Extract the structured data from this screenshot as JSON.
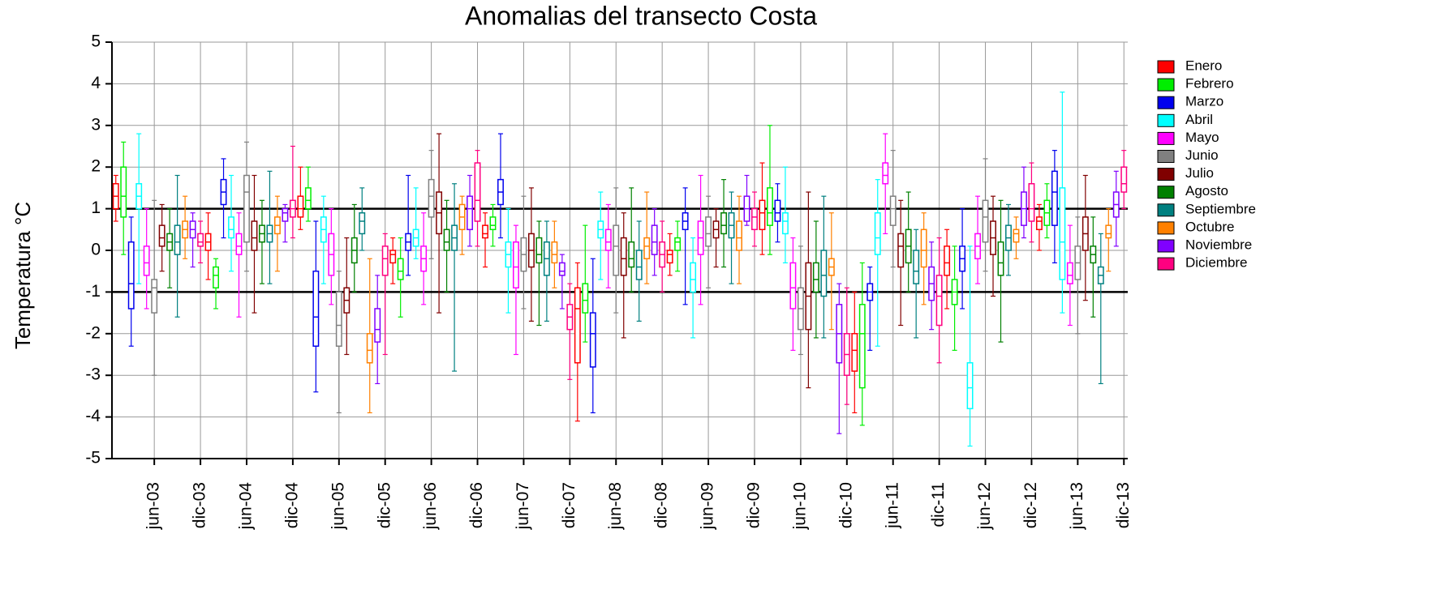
{
  "chart_data": {
    "type": "box",
    "title": "Anomalias del transecto Costa",
    "y_label": "Temperatura °C",
    "categories": [
      null,
      null,
      null,
      null,
      null,
      "jun-03",
      null,
      null,
      null,
      null,
      null,
      "dic-03",
      null,
      null,
      null,
      null,
      null,
      "jun-04",
      null,
      null,
      null,
      null,
      null,
      "dic-04",
      null,
      null,
      null,
      null,
      null,
      "jun-05",
      null,
      null,
      null,
      null,
      null,
      "dic-05",
      null,
      null,
      null,
      null,
      null,
      "jun-06",
      null,
      null,
      null,
      null,
      null,
      "dic-06",
      null,
      null,
      null,
      null,
      null,
      "jun-07",
      null,
      null,
      null,
      null,
      null,
      "dic-07",
      null,
      null,
      null,
      null,
      null,
      "jun-08",
      null,
      null,
      null,
      null,
      null,
      "dic-08",
      null,
      null,
      null,
      null,
      null,
      "jun-09",
      null,
      null,
      null,
      null,
      null,
      "dic-09",
      null,
      null,
      null,
      null,
      null,
      "jun-10",
      null,
      null,
      null,
      null,
      null,
      "dic-10",
      null,
      null,
      null,
      null,
      null,
      "jun-11",
      null,
      null,
      null,
      null,
      null,
      "dic-11",
      null,
      null,
      null,
      null,
      null,
      "jun-12",
      null,
      null,
      null,
      null,
      null,
      "dic-12",
      null,
      null,
      null,
      null,
      null,
      "jun-13",
      null,
      null,
      null,
      null,
      null,
      "dic-13"
    ],
    "legend": [
      {
        "name": "Enero",
        "color": "#ff0000"
      },
      {
        "name": "Febrero",
        "color": "#00ee00"
      },
      {
        "name": "Marzo",
        "color": "#0000ee"
      },
      {
        "name": "Abril",
        "color": "#00ffff"
      },
      {
        "name": "Mayo",
        "color": "#ff00ff"
      },
      {
        "name": "Junio",
        "color": "#808080"
      },
      {
        "name": "Julio",
        "color": "#800000"
      },
      {
        "name": "Agosto",
        "color": "#008000"
      },
      {
        "name": "Septiembre",
        "color": "#008080"
      },
      {
        "name": "Octubre",
        "color": "#ff8000"
      },
      {
        "name": "Noviembre",
        "color": "#8000ff"
      },
      {
        "name": "Diciembre",
        "color": "#ff0080"
      }
    ],
    "boxes": [
      [
        0.7,
        1.0,
        1.3,
        1.6,
        1.8
      ],
      [
        -0.1,
        0.8,
        1.3,
        2.0,
        2.6
      ],
      [
        -2.3,
        -1.4,
        -0.8,
        0.2,
        0.8
      ],
      [
        -0.8,
        1.0,
        1.3,
        1.6,
        2.8
      ],
      [
        -1.4,
        -0.6,
        -0.3,
        0.1,
        1.0
      ],
      [
        -3.0,
        -1.5,
        -0.9,
        -0.7,
        1.2
      ],
      [
        -0.5,
        0.1,
        0.3,
        0.6,
        1.1
      ],
      [
        -0.9,
        0.0,
        0.2,
        0.4,
        1.0
      ],
      [
        -1.6,
        -0.1,
        0.2,
        0.6,
        1.8
      ],
      [
        -0.2,
        0.3,
        0.5,
        0.7,
        1.3
      ],
      [
        -0.4,
        0.3,
        0.5,
        0.7,
        0.9
      ],
      [
        -0.3,
        0.1,
        0.2,
        0.4,
        0.7
      ],
      [
        -0.7,
        0.0,
        0.2,
        0.4,
        0.9
      ],
      [
        -1.4,
        -0.9,
        -0.6,
        -0.4,
        -0.2
      ],
      [
        0.3,
        1.1,
        1.4,
        1.7,
        2.2
      ],
      [
        -0.5,
        0.3,
        0.5,
        0.8,
        1.8
      ],
      [
        -1.6,
        -0.1,
        0.1,
        0.4,
        0.9
      ],
      [
        -0.5,
        0.2,
        1.4,
        1.8,
        2.6
      ],
      [
        -1.5,
        0.0,
        0.3,
        0.7,
        1.8
      ],
      [
        -0.8,
        0.2,
        0.4,
        0.6,
        1.2
      ],
      [
        -0.8,
        0.2,
        0.4,
        0.6,
        1.9
      ],
      [
        -0.5,
        0.4,
        0.6,
        0.8,
        1.3
      ],
      [
        0.2,
        0.7,
        0.9,
        1.0,
        1.1
      ],
      [
        0.3,
        0.8,
        1.0,
        1.2,
        2.5
      ],
      [
        0.5,
        0.8,
        1.0,
        1.3,
        2.0
      ],
      [
        0.7,
        1.0,
        1.2,
        1.5,
        2.0
      ],
      [
        -3.4,
        -2.3,
        -1.6,
        -0.5,
        0.7
      ],
      [
        -0.8,
        0.2,
        0.5,
        0.8,
        1.3
      ],
      [
        -1.3,
        -0.6,
        -0.1,
        0.4,
        1.0
      ],
      [
        -3.9,
        -2.3,
        -1.8,
        -1.0,
        -0.5
      ],
      [
        -2.5,
        -1.5,
        -1.2,
        -0.9,
        0.3
      ],
      [
        -1.0,
        -0.3,
        0.0,
        0.3,
        1.1
      ],
      [
        0.0,
        0.4,
        0.7,
        0.9,
        1.5
      ],
      [
        -3.9,
        -2.7,
        -2.4,
        -2.0,
        -0.2
      ],
      [
        -3.2,
        -2.2,
        -1.9,
        -1.4,
        -0.6
      ],
      [
        -2.5,
        -0.6,
        -0.2,
        0.1,
        0.4
      ],
      [
        -0.8,
        -0.3,
        -0.1,
        0.0,
        0.3
      ],
      [
        -1.6,
        -0.7,
        -0.5,
        -0.2,
        0.3
      ],
      [
        -0.6,
        0.0,
        0.2,
        0.4,
        1.8
      ],
      [
        -0.2,
        0.1,
        0.3,
        0.5,
        1.5
      ],
      [
        -1.3,
        -0.5,
        -0.2,
        0.1,
        0.9
      ],
      [
        -0.2,
        0.8,
        1.3,
        1.7,
        2.4
      ],
      [
        -1.5,
        0.4,
        0.9,
        1.4,
        2.8
      ],
      [
        -1.0,
        0.0,
        0.2,
        0.5,
        1.2
      ],
      [
        -2.9,
        0.0,
        0.3,
        0.6,
        1.6
      ],
      [
        -0.1,
        0.5,
        0.8,
        1.1,
        1.3
      ],
      [
        0.1,
        0.5,
        1.0,
        1.3,
        1.8
      ],
      [
        0.1,
        0.7,
        1.2,
        2.1,
        2.4
      ],
      [
        -0.4,
        0.3,
        0.4,
        0.6,
        0.9
      ],
      [
        0.1,
        0.5,
        0.6,
        0.8,
        1.1
      ],
      [
        0.3,
        1.1,
        1.4,
        1.7,
        2.8
      ],
      [
        -1.5,
        -0.4,
        -0.1,
        0.2,
        1.0
      ],
      [
        -2.5,
        -0.9,
        -0.4,
        0.2,
        0.6
      ],
      [
        -1.4,
        -0.5,
        -0.1,
        0.3,
        1.3
      ],
      [
        -1.7,
        -0.4,
        0.0,
        0.4,
        1.5
      ],
      [
        -1.8,
        -0.3,
        -0.1,
        0.3,
        0.7
      ],
      [
        -1.7,
        -0.6,
        -0.2,
        0.2,
        0.7
      ],
      [
        -0.9,
        -0.3,
        -0.1,
        0.2,
        0.7
      ],
      [
        -1.4,
        -0.6,
        -0.5,
        -0.3,
        -0.1
      ],
      [
        -3.1,
        -1.9,
        -1.6,
        -1.3,
        -0.8
      ],
      [
        -4.1,
        -2.7,
        -1.4,
        -0.9,
        -0.3
      ],
      [
        -2.2,
        -1.5,
        -1.2,
        -0.8,
        0.6
      ],
      [
        -3.9,
        -2.8,
        -2.0,
        -1.5,
        -0.2
      ],
      [
        -0.7,
        0.3,
        0.5,
        0.7,
        1.4
      ],
      [
        -0.9,
        0.0,
        0.2,
        0.5,
        1.1
      ],
      [
        -1.5,
        -0.6,
        0.1,
        0.6,
        1.5
      ],
      [
        -2.1,
        -0.6,
        -0.2,
        0.3,
        0.9
      ],
      [
        -1.0,
        -0.4,
        -0.2,
        0.2,
        1.5
      ],
      [
        -1.7,
        -0.7,
        -0.4,
        0.0,
        0.7
      ],
      [
        -0.8,
        -0.2,
        0.1,
        0.3,
        1.4
      ],
      [
        -0.6,
        -0.1,
        0.2,
        0.6,
        1.0
      ],
      [
        -1.0,
        -0.4,
        -0.1,
        0.2,
        0.7
      ],
      [
        -0.6,
        -0.3,
        -0.1,
        0.0,
        0.4
      ],
      [
        -0.5,
        0.0,
        0.2,
        0.3,
        0.7
      ],
      [
        -1.3,
        0.5,
        0.7,
        0.9,
        1.5
      ],
      [
        -2.1,
        -1.0,
        -0.7,
        -0.3,
        0.3
      ],
      [
        -1.3,
        -0.1,
        0.3,
        0.7,
        1.8
      ],
      [
        -0.9,
        0.1,
        0.4,
        0.8,
        1.3
      ],
      [
        -0.4,
        0.3,
        0.5,
        0.7,
        1.0
      ],
      [
        -0.4,
        0.4,
        0.6,
        0.9,
        1.7
      ],
      [
        -0.8,
        0.3,
        0.6,
        0.9,
        1.4
      ],
      [
        -0.8,
        0.0,
        0.3,
        0.7,
        1.3
      ],
      [
        0.6,
        0.7,
        1.0,
        1.3,
        1.8
      ],
      [
        0.1,
        0.5,
        0.8,
        1.0,
        1.4
      ],
      [
        -0.1,
        0.5,
        0.9,
        1.2,
        2.1
      ],
      [
        -0.1,
        0.6,
        0.9,
        1.5,
        3.0
      ],
      [
        0.2,
        0.7,
        0.9,
        1.2,
        1.6
      ],
      [
        -0.3,
        0.4,
        0.7,
        0.9,
        2.0
      ],
      [
        -2.4,
        -1.4,
        -0.9,
        -0.3,
        0.3
      ],
      [
        -2.5,
        -1.9,
        -1.4,
        -0.9,
        0.1
      ],
      [
        -3.3,
        -1.9,
        -1.1,
        -0.3,
        1.4
      ],
      [
        -2.1,
        -1.0,
        -0.7,
        -0.3,
        0.7
      ],
      [
        -2.1,
        -1.1,
        -0.6,
        0.0,
        1.3
      ],
      [
        -1.9,
        -0.6,
        -0.4,
        -0.2,
        0.9
      ],
      [
        -4.4,
        -2.7,
        -2.0,
        -1.3,
        -0.8
      ],
      [
        -3.7,
        -3.0,
        -2.5,
        -2.0,
        -0.9
      ],
      [
        -3.9,
        -2.9,
        -2.4,
        -2.0,
        -1.0
      ],
      [
        -4.2,
        -3.3,
        -2.0,
        -1.3,
        -0.3
      ],
      [
        -2.4,
        -1.2,
        -1.0,
        -0.8,
        -0.4
      ],
      [
        -2.3,
        -0.1,
        0.3,
        0.9,
        1.7
      ],
      [
        0.4,
        1.6,
        1.8,
        2.1,
        2.8
      ],
      [
        -0.4,
        0.6,
        1.0,
        1.3,
        2.4
      ],
      [
        -1.8,
        -0.4,
        0.1,
        0.4,
        1.2
      ],
      [
        -1.0,
        -0.3,
        0.1,
        0.5,
        1.4
      ],
      [
        -2.1,
        -0.8,
        -0.5,
        0.0,
        0.5
      ],
      [
        -1.3,
        -0.4,
        0.0,
        0.5,
        0.9
      ],
      [
        -1.9,
        -1.2,
        -0.8,
        -0.4,
        0.2
      ],
      [
        -2.7,
        -1.8,
        -1.1,
        -0.6,
        0.3
      ],
      [
        -1.4,
        -0.6,
        -0.3,
        0.1,
        0.5
      ],
      [
        -2.4,
        -1.3,
        -1.0,
        -0.7,
        0.1
      ],
      [
        -1.4,
        -0.5,
        -0.2,
        0.1,
        1.0
      ],
      [
        -4.7,
        -3.8,
        -3.3,
        -2.7,
        0.1
      ],
      [
        -0.8,
        -0.2,
        0.1,
        0.4,
        1.3
      ],
      [
        -0.5,
        0.2,
        0.8,
        1.2,
        2.2
      ],
      [
        -1.1,
        -0.1,
        0.3,
        0.7,
        1.3
      ],
      [
        -2.2,
        -0.6,
        -0.3,
        0.2,
        1.2
      ],
      [
        -0.6,
        0.0,
        0.3,
        0.6,
        1.1
      ],
      [
        -0.2,
        0.2,
        0.4,
        0.5,
        0.8
      ],
      [
        0.3,
        0.6,
        1.0,
        1.4,
        2.0
      ],
      [
        0.2,
        0.7,
        1.0,
        1.6,
        2.1
      ],
      [
        0.0,
        0.5,
        0.7,
        0.8,
        1.1
      ],
      [
        0.3,
        0.6,
        0.9,
        1.2,
        1.6
      ],
      [
        -0.3,
        0.6,
        1.4,
        1.9,
        2.4
      ],
      [
        -1.5,
        -0.7,
        0.2,
        1.5,
        3.8
      ],
      [
        -1.8,
        -0.8,
        -0.6,
        -0.3,
        0.6
      ],
      [
        -2.0,
        -0.7,
        -0.3,
        0.1,
        0.8
      ],
      [
        -1.2,
        0.0,
        0.4,
        0.8,
        1.8
      ],
      [
        -1.6,
        -0.3,
        -0.1,
        0.1,
        0.8
      ],
      [
        -3.2,
        -0.8,
        -0.6,
        -0.4,
        0.4
      ],
      [
        -0.5,
        0.3,
        0.4,
        0.6,
        1.0
      ],
      [
        0.1,
        0.8,
        1.1,
        1.4,
        1.9
      ],
      [
        1.0,
        1.4,
        1.6,
        2.0,
        2.4
      ]
    ],
    "ylim": [
      -5,
      5
    ],
    "yticks": [
      -5,
      -4,
      -3,
      -2,
      -1,
      0,
      1,
      2,
      3,
      4,
      5
    ],
    "reference_lines": [
      1,
      -1
    ],
    "grid": true,
    "legend_position": "right"
  }
}
